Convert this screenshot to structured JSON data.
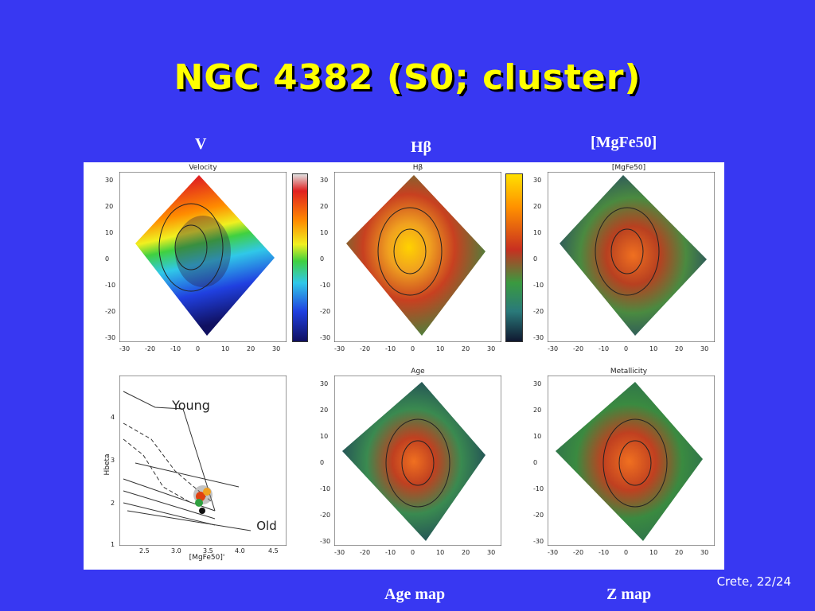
{
  "title": "NGC 4382 (S0; cluster)",
  "captions": {
    "v": "V",
    "hbeta": "Hβ",
    "mgfe": "[MgFe50]",
    "age": "Age map",
    "z": "Z map"
  },
  "panels": {
    "velocity": "Velocity",
    "hbeta": "Hβ",
    "mgfe": "[MgFe50]",
    "age": "Age",
    "metallicity": "Metallicity"
  },
  "grid_plot": {
    "young_label": "Young",
    "old_label": "Old",
    "xlabel": "[MgFe50]'",
    "ylabel": "Hbeta",
    "xticks": [
      "2.5",
      "3.0",
      "3.5",
      "4.0",
      "4.5"
    ],
    "yticks": [
      "4",
      "3",
      "2",
      "1"
    ]
  },
  "map_ticks": [
    "30",
    "20",
    "10",
    "0",
    "-10",
    "-20",
    "-30"
  ],
  "map_xticks": [
    "-30",
    "-20",
    "-10",
    "0",
    "10",
    "20",
    "30"
  ],
  "footer": "Crete, 22/24"
}
